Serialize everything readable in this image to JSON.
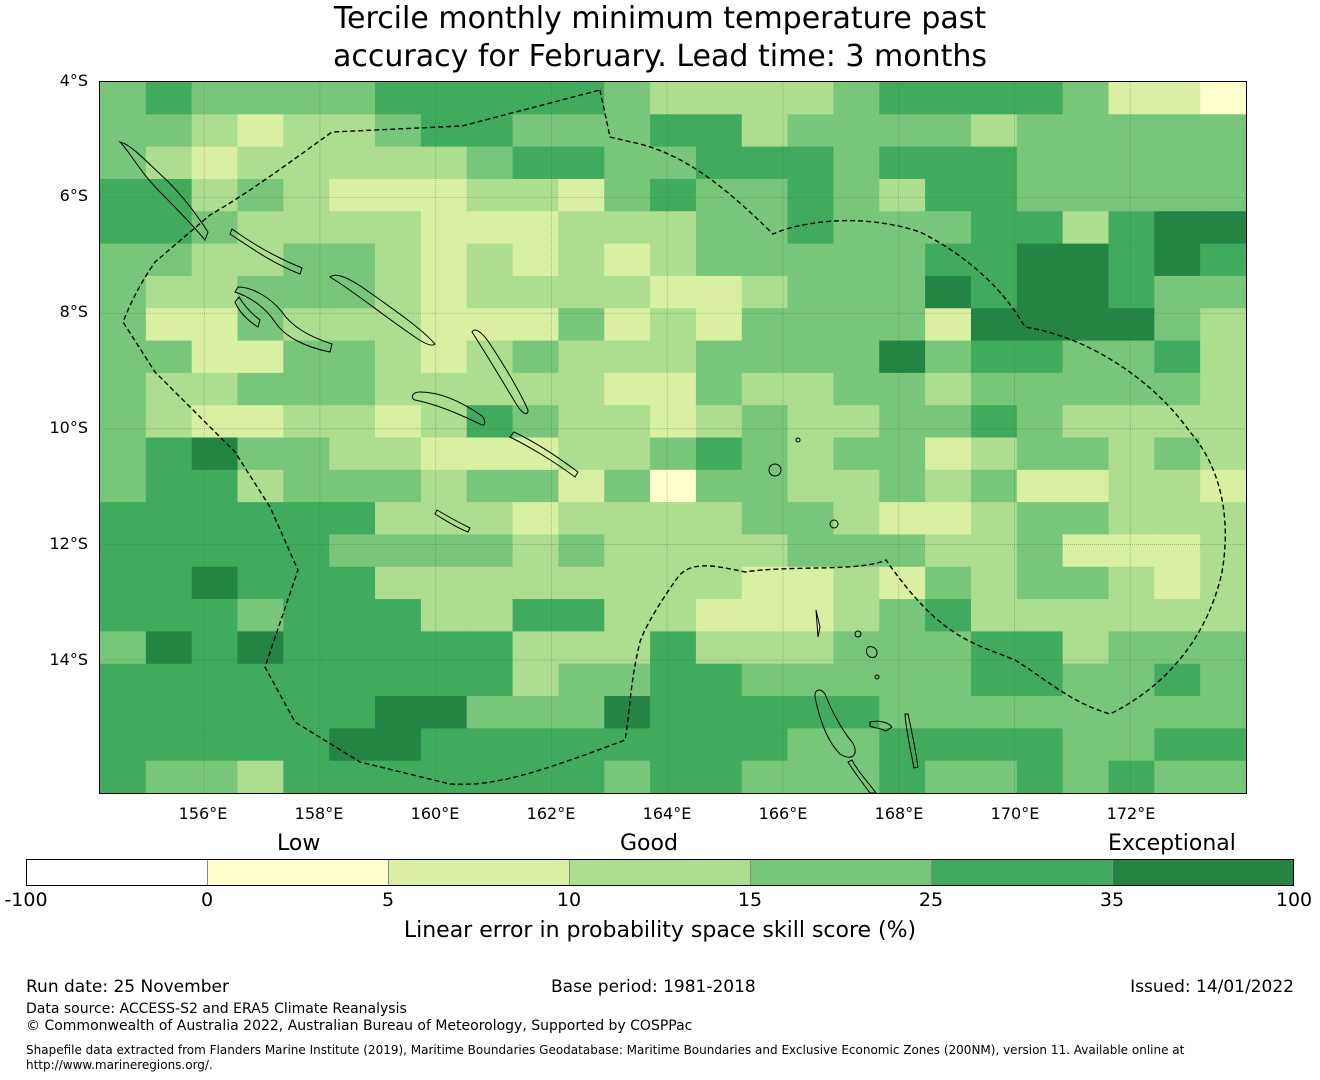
{
  "title_lines": [
    "Tercile monthly minimum temperature past",
    "accuracy for February. Lead time: 3 months"
  ],
  "map": {
    "lat_labels": [
      "4°S",
      "6°S",
      "8°S",
      "10°S",
      "12°S",
      "14°S"
    ],
    "lon_labels": [
      "156°E",
      "158°E",
      "160°E",
      "162°E",
      "164°E",
      "166°E",
      "168°E",
      "170°E",
      "172°E"
    ],
    "extent": {
      "lon_min": 154.2,
      "lon_max": 174.0,
      "lat_min": -16.3,
      "lat_max": -4.0
    },
    "grid_rows": [
      "4544445555543333455554221",
      "4432334554445534444344444",
      "4323333345544555455544444",
      "5534322233245445435544444",
      "5543333222333445444553566",
      "4433443232323444445566565",
      "4334443233332234446566544",
      "4224333222423244442666643",
      "4422443234333444464554453",
      "4334443333322433443444443",
      "4322332354332343344543333",
      "4564433222334543442344343",
      "4553444344241443343422332",
      "5555553332333344322344333",
      "5555544443433334443342223",
      "5565553333333322324344323",
      "5554555335533222345333333",
      "4656555553335333444553444",
      "5555555553445544444554454",
      "5555556644465555544444444",
      "5555566555555554455554455",
      "5443555555545544454454544"
    ],
    "level_colors": [
      "#ffffff",
      "#ffffcc",
      "#d9f0a3",
      "#addd8e",
      "#78c679",
      "#41ab5d",
      "#238443"
    ]
  },
  "colorbar": {
    "categories": [
      "Low",
      "Good",
      "Exceptional"
    ],
    "ticks": [
      "-100",
      "0",
      "5",
      "10",
      "15",
      "25",
      "35",
      "100"
    ],
    "label": "Linear error in probability space skill score (%)"
  },
  "footer": {
    "run_date": "Run date: 25 November",
    "base_period": "Base period: 1981-2018",
    "issued": "Issued: 14/01/2022",
    "data_source": "Data source: ACCESS-S2 and ERA5 Climate Reanalysis",
    "copyright": "© Commonwealth of Australia 2022, Australian Bureau of Meteorology, Supported by COSPPac",
    "shapefile_line1": "Shapefile data extracted from Flanders Marine Institute (2019), Maritime Boundaries Geodatabase: Maritime Boundaries and Exclusive Economic Zones (200NM), version 11. Available online at",
    "shapefile_line2": "http://www.marineregions.org/."
  }
}
